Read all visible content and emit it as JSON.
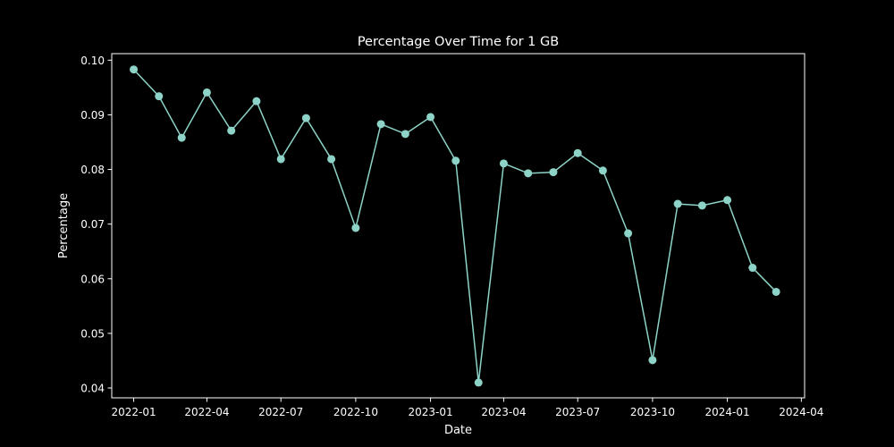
{
  "chart_data": {
    "type": "line",
    "title": "Percentage Over Time for 1 GB",
    "xlabel": "Date",
    "ylabel": "Percentage",
    "x_range": [
      "2021-12-05",
      "2024-04-05"
    ],
    "ylim": [
      0.0382,
      0.1012
    ],
    "x_ticks": [
      {
        "date": "2022-01-01",
        "label": "2022-01"
      },
      {
        "date": "2022-04-01",
        "label": "2022-04"
      },
      {
        "date": "2022-07-01",
        "label": "2022-07"
      },
      {
        "date": "2022-10-01",
        "label": "2022-10"
      },
      {
        "date": "2023-01-01",
        "label": "2023-01"
      },
      {
        "date": "2023-04-01",
        "label": "2023-04"
      },
      {
        "date": "2023-07-01",
        "label": "2023-07"
      },
      {
        "date": "2023-10-01",
        "label": "2023-10"
      },
      {
        "date": "2024-01-01",
        "label": "2024-01"
      },
      {
        "date": "2024-04-01",
        "label": "2024-04"
      }
    ],
    "y_ticks": [
      {
        "value": 0.04,
        "label": "0.04"
      },
      {
        "value": 0.05,
        "label": "0.05"
      },
      {
        "value": 0.06,
        "label": "0.06"
      },
      {
        "value": 0.07,
        "label": "0.07"
      },
      {
        "value": 0.08,
        "label": "0.08"
      },
      {
        "value": 0.09,
        "label": "0.09"
      },
      {
        "value": 0.1,
        "label": "0.10"
      }
    ],
    "grid": false,
    "series": [
      {
        "color": "#8dd3c7",
        "points": [
          {
            "x": "2022-01-01",
            "y": 0.0983
          },
          {
            "x": "2022-02-01",
            "y": 0.0934
          },
          {
            "x": "2022-03-01",
            "y": 0.0858
          },
          {
            "x": "2022-04-01",
            "y": 0.0941
          },
          {
            "x": "2022-05-01",
            "y": 0.0871
          },
          {
            "x": "2022-06-01",
            "y": 0.0925
          },
          {
            "x": "2022-07-01",
            "y": 0.0819
          },
          {
            "x": "2022-08-01",
            "y": 0.0894
          },
          {
            "x": "2022-09-01",
            "y": 0.0819
          },
          {
            "x": "2022-10-01",
            "y": 0.0693
          },
          {
            "x": "2022-11-01",
            "y": 0.0883
          },
          {
            "x": "2022-12-01",
            "y": 0.0865
          },
          {
            "x": "2023-01-01",
            "y": 0.0896
          },
          {
            "x": "2023-02-01",
            "y": 0.0816
          },
          {
            "x": "2023-03-01",
            "y": 0.041
          },
          {
            "x": "2023-04-01",
            "y": 0.0811
          },
          {
            "x": "2023-05-01",
            "y": 0.0793
          },
          {
            "x": "2023-06-01",
            "y": 0.0795
          },
          {
            "x": "2023-07-01",
            "y": 0.083
          },
          {
            "x": "2023-08-01",
            "y": 0.0798
          },
          {
            "x": "2023-09-01",
            "y": 0.0683
          },
          {
            "x": "2023-10-01",
            "y": 0.0451
          },
          {
            "x": "2023-11-01",
            "y": 0.0737
          },
          {
            "x": "2023-12-01",
            "y": 0.0734
          },
          {
            "x": "2024-01-01",
            "y": 0.0744
          },
          {
            "x": "2024-02-01",
            "y": 0.062
          },
          {
            "x": "2024-03-01",
            "y": 0.0576
          }
        ]
      }
    ]
  }
}
